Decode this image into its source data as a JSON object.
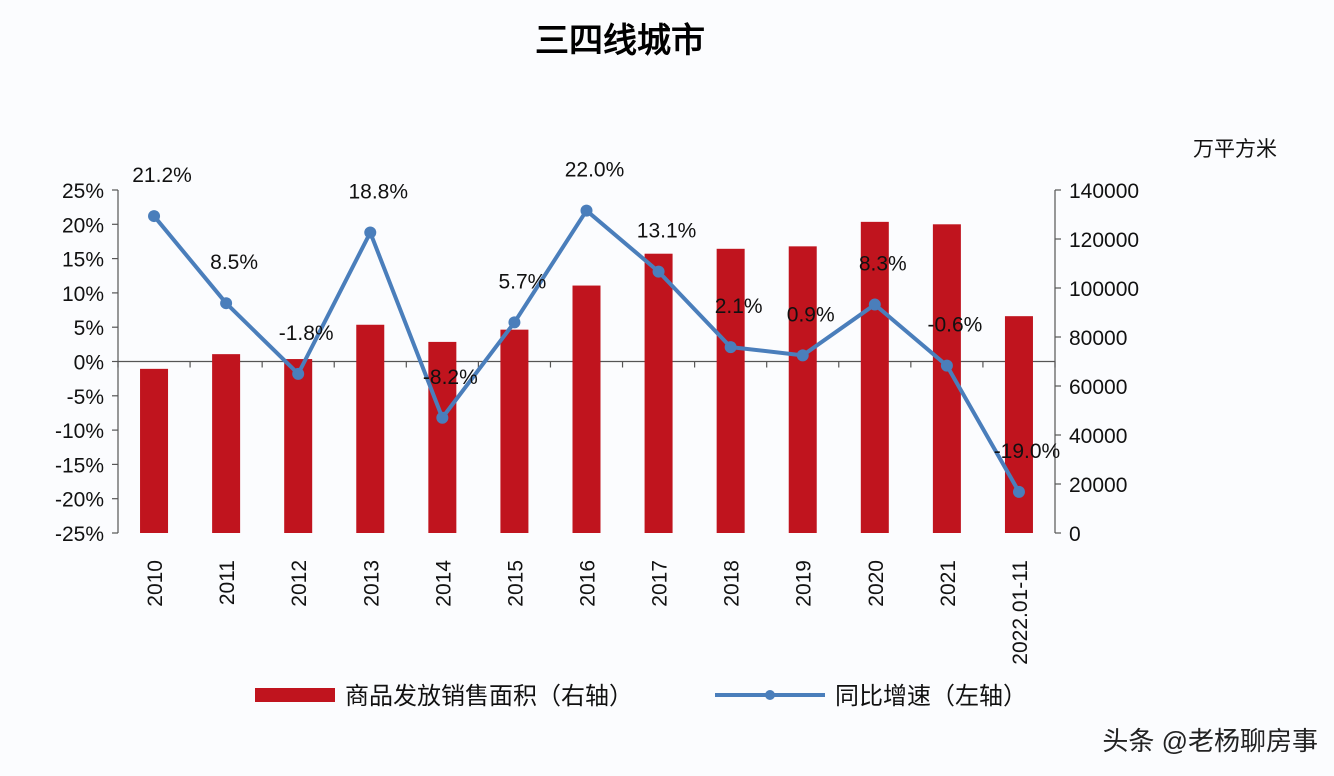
{
  "chart_data": {
    "type": "bar+line",
    "title": "三四线城市",
    "right_axis_unit": "万平方米",
    "categories": [
      "2010",
      "2011",
      "2012",
      "2013",
      "2014",
      "2015",
      "2016",
      "2017",
      "2018",
      "2019",
      "2020",
      "2021",
      "2022.01-11"
    ],
    "series": [
      {
        "name": "商品发放销售面积（右轴）",
        "type": "bar",
        "axis": "right",
        "color": "#c0141e",
        "values": [
          67000,
          73000,
          71000,
          85000,
          78000,
          83000,
          101000,
          114000,
          116000,
          117000,
          127000,
          126000,
          88500
        ]
      },
      {
        "name": "同比增速（左轴）",
        "type": "line",
        "axis": "left",
        "color": "#4a7ebb",
        "values": [
          21.2,
          8.5,
          -1.8,
          18.8,
          -8.2,
          5.7,
          22.0,
          13.1,
          2.1,
          0.9,
          8.3,
          -0.6,
          -19.0
        ],
        "labels": [
          "21.2%",
          "8.5%",
          "-1.8%",
          "18.8%",
          "-8.2%",
          "5.7%",
          "22.0%",
          "13.1%",
          "2.1%",
          "0.9%",
          "8.3%",
          "-0.6%",
          "-19.0%"
        ]
      }
    ],
    "left_axis": {
      "range": [
        -25,
        25
      ],
      "ticks": [
        "25%",
        "20%",
        "15%",
        "10%",
        "5%",
        "0%",
        "-5%",
        "-10%",
        "-15%",
        "-20%",
        "-25%"
      ]
    },
    "right_axis": {
      "range": [
        0,
        140000
      ],
      "ticks": [
        "140000",
        "120000",
        "100000",
        "80000",
        "60000",
        "40000",
        "20000",
        "0"
      ]
    },
    "grid": false,
    "legend": "bottom"
  },
  "watermark": "头条 @老杨聊房事"
}
